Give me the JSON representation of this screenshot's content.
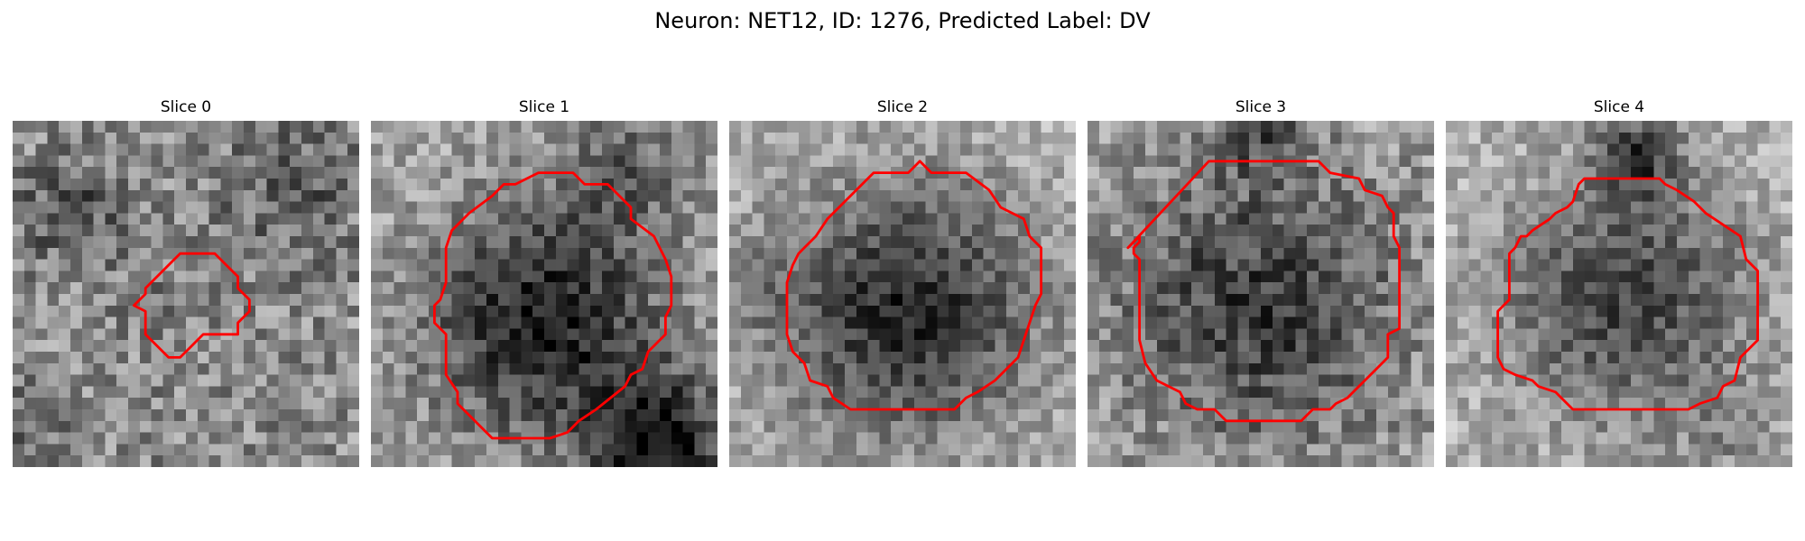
{
  "figure": {
    "title": "Neuron: NET12, ID: 1276, Predicted Label: DV"
  },
  "colors": {
    "contour": "#ff0000",
    "background": "#ffffff"
  },
  "grid_size": 30,
  "panels": [
    {
      "title": "Slice 0",
      "appearance": {
        "center": [
          14.5,
          16.0
        ],
        "radius": 6.0,
        "darkness": 0.05,
        "base": 0.55,
        "noise": 0.22,
        "seed": 11,
        "blobs": [
          {
            "c": [
              5,
              8
            ],
            "r": 3.0,
            "d": 0.25
          },
          {
            "c": [
              24,
              6
            ],
            "r": 4.0,
            "d": 0.2
          },
          {
            "c": [
              2,
              26
            ],
            "r": 2.5,
            "d": 0.15
          }
        ]
      },
      "contour": [
        [
          14.5,
          11.5
        ],
        [
          17.5,
          11.5
        ],
        [
          19.5,
          13.5
        ],
        [
          19.5,
          14.5
        ],
        [
          20.5,
          15.5
        ],
        [
          20.5,
          16.5
        ],
        [
          19.5,
          17.5
        ],
        [
          19.5,
          18.5
        ],
        [
          16.5,
          18.5
        ],
        [
          15.5,
          19.5
        ],
        [
          14.5,
          20.5
        ],
        [
          13.5,
          20.5
        ],
        [
          11.5,
          18.5
        ],
        [
          11.5,
          16.5
        ],
        [
          10.5,
          16.0
        ],
        [
          11.5,
          15.0
        ],
        [
          11.5,
          14.5
        ],
        [
          13.5,
          12.5
        ]
      ]
    },
    {
      "title": "Slice 1",
      "appearance": {
        "center": [
          15.0,
          17.5
        ],
        "radius": 9.5,
        "darkness": 0.55,
        "base": 0.65,
        "noise": 0.18,
        "seed": 23,
        "blobs": [
          {
            "c": [
              25,
              28
            ],
            "r": 4.0,
            "d": 0.6
          },
          {
            "c": [
              22,
              4
            ],
            "r": 4.0,
            "d": 0.25
          }
        ]
      },
      "contour": [
        [
          12.5,
          5.5
        ],
        [
          14.5,
          4.5
        ],
        [
          17.5,
          4.5
        ],
        [
          18.5,
          5.5
        ],
        [
          20.5,
          5.5
        ],
        [
          22.5,
          7.5
        ],
        [
          22.5,
          8.5
        ],
        [
          24.5,
          10.0
        ],
        [
          25.5,
          12.0
        ],
        [
          26.0,
          13.5
        ],
        [
          26.0,
          16.0
        ],
        [
          25.5,
          17.0
        ],
        [
          25.5,
          18.5
        ],
        [
          24.0,
          20.0
        ],
        [
          23.5,
          21.5
        ],
        [
          22.5,
          22.0
        ],
        [
          22.0,
          23.0
        ],
        [
          19.5,
          25.0
        ],
        [
          18.0,
          26.0
        ],
        [
          17.0,
          27.0
        ],
        [
          15.5,
          27.5
        ],
        [
          10.5,
          27.5
        ],
        [
          9.5,
          26.5
        ],
        [
          8.5,
          25.5
        ],
        [
          7.5,
          24.5
        ],
        [
          7.5,
          23.5
        ],
        [
          6.5,
          22.0
        ],
        [
          6.5,
          18.5
        ],
        [
          5.5,
          17.5
        ],
        [
          5.5,
          16.0
        ],
        [
          6.0,
          15.5
        ],
        [
          6.5,
          14.0
        ],
        [
          6.5,
          11.0
        ],
        [
          7.0,
          9.5
        ],
        [
          8.5,
          8.0
        ],
        [
          10.5,
          6.5
        ],
        [
          11.5,
          5.5
        ]
      ]
    },
    {
      "title": "Slice 2",
      "appearance": {
        "center": [
          15.5,
          16.5
        ],
        "radius": 10.5,
        "darkness": 0.55,
        "base": 0.7,
        "noise": 0.16,
        "seed": 37,
        "blobs": [
          {
            "c": [
              2,
              14
            ],
            "r": 3.0,
            "d": 0.15
          }
        ]
      },
      "contour": [
        [
          8.5,
          8.5
        ],
        [
          12.5,
          4.5
        ],
        [
          15.5,
          4.5
        ],
        [
          16.5,
          3.5
        ],
        [
          17.5,
          4.5
        ],
        [
          20.5,
          4.5
        ],
        [
          22.5,
          6.0
        ],
        [
          23.5,
          7.5
        ],
        [
          25.5,
          8.5
        ],
        [
          26.0,
          10.0
        ],
        [
          27.0,
          11.0
        ],
        [
          27.0,
          15.0
        ],
        [
          26.5,
          16.0
        ],
        [
          26.0,
          17.5
        ],
        [
          25.5,
          19.0
        ],
        [
          25.0,
          20.5
        ],
        [
          24.0,
          21.5
        ],
        [
          23.0,
          22.5
        ],
        [
          21.5,
          23.5
        ],
        [
          20.5,
          24.0
        ],
        [
          19.5,
          25.0
        ],
        [
          10.5,
          25.0
        ],
        [
          9.0,
          24.0
        ],
        [
          8.5,
          23.0
        ],
        [
          7.0,
          22.5
        ],
        [
          6.5,
          21.0
        ],
        [
          5.5,
          20.0
        ],
        [
          5.0,
          18.5
        ],
        [
          5.0,
          14.0
        ],
        [
          5.5,
          12.5
        ],
        [
          6.0,
          11.5
        ],
        [
          7.5,
          10.0
        ]
      ]
    },
    {
      "title": "Slice 3",
      "appearance": {
        "center": [
          15.0,
          16.0
        ],
        "radius": 11.0,
        "darkness": 0.4,
        "base": 0.62,
        "noise": 0.2,
        "seed": 51,
        "blobs": [
          {
            "c": [
              15,
              1
            ],
            "r": 2.5,
            "d": 0.3
          }
        ]
      },
      "contour": [
        [
          10.5,
          3.5
        ],
        [
          20.0,
          3.5
        ],
        [
          21.0,
          4.5
        ],
        [
          23.5,
          5.0
        ],
        [
          24.0,
          6.0
        ],
        [
          25.5,
          6.5
        ],
        [
          26.0,
          7.5
        ],
        [
          26.5,
          8.0
        ],
        [
          26.5,
          10.0
        ],
        [
          27.0,
          11.0
        ],
        [
          27.0,
          18.0
        ],
        [
          26.0,
          18.5
        ],
        [
          26.0,
          20.5
        ],
        [
          25.0,
          21.5
        ],
        [
          24.0,
          22.5
        ],
        [
          23.0,
          23.5
        ],
        [
          22.5,
          24.0
        ],
        [
          21.5,
          24.5
        ],
        [
          21.0,
          25.0
        ],
        [
          19.5,
          25.0
        ],
        [
          18.5,
          26.0
        ],
        [
          15.5,
          26.0
        ],
        [
          14.5,
          26.0
        ],
        [
          12.0,
          26.0
        ],
        [
          11.0,
          25.0
        ],
        [
          9.5,
          25.0
        ],
        [
          8.5,
          24.5
        ],
        [
          8.0,
          23.5
        ],
        [
          7.0,
          23.0
        ],
        [
          6.0,
          22.5
        ],
        [
          5.0,
          21.0
        ],
        [
          4.5,
          19.0
        ],
        [
          4.5,
          12.0
        ],
        [
          4.0,
          11.5
        ],
        [
          4.0,
          11.0
        ],
        [
          4.5,
          10.5
        ],
        [
          4.5,
          10.0
        ],
        [
          3.5,
          11.0
        ]
      ]
    },
    {
      "title": "Slice 4",
      "appearance": {
        "center": [
          15.5,
          15.5
        ],
        "radius": 10.5,
        "darkness": 0.45,
        "base": 0.72,
        "noise": 0.16,
        "seed": 67,
        "blobs": [
          {
            "c": [
              16.5,
              3
            ],
            "r": 2.5,
            "d": 0.45
          },
          {
            "c": [
              25,
              27
            ],
            "r": 3.0,
            "d": 0.15
          }
        ]
      },
      "contour": [
        [
          11.5,
          5.5
        ],
        [
          12.0,
          5.0
        ],
        [
          13.0,
          5.0
        ],
        [
          15.0,
          5.0
        ],
        [
          18.5,
          5.0
        ],
        [
          19.0,
          5.5
        ],
        [
          20.0,
          6.0
        ],
        [
          21.5,
          7.0
        ],
        [
          22.5,
          8.0
        ],
        [
          25.5,
          10.0
        ],
        [
          26.0,
          12.0
        ],
        [
          27.0,
          13.0
        ],
        [
          27.0,
          19.0
        ],
        [
          26.5,
          19.5
        ],
        [
          25.5,
          20.5
        ],
        [
          25.0,
          22.5
        ],
        [
          24.0,
          23.0
        ],
        [
          23.5,
          24.0
        ],
        [
          22.0,
          24.5
        ],
        [
          21.0,
          25.0
        ],
        [
          11.0,
          25.0
        ],
        [
          10.0,
          24.0
        ],
        [
          9.5,
          23.5
        ],
        [
          8.0,
          23.0
        ],
        [
          7.5,
          22.5
        ],
        [
          6.0,
          22.0
        ],
        [
          5.0,
          21.5
        ],
        [
          4.5,
          20.5
        ],
        [
          4.5,
          16.5
        ],
        [
          5.0,
          16.0
        ],
        [
          5.5,
          15.5
        ],
        [
          5.5,
          11.5
        ],
        [
          6.0,
          11.0
        ],
        [
          6.5,
          10.0
        ],
        [
          7.0,
          10.0
        ],
        [
          7.5,
          9.5
        ],
        [
          9.0,
          8.5
        ],
        [
          9.5,
          8.0
        ],
        [
          10.5,
          7.5
        ],
        [
          11.0,
          7.0
        ]
      ]
    }
  ]
}
